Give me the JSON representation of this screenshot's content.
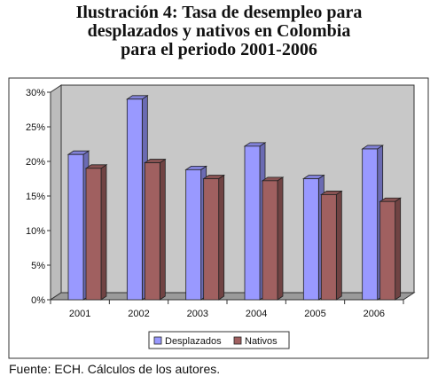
{
  "title_lines": [
    "Ilustración 4: Tasa de desempleo para",
    "desplazados y nativos en Colombia",
    "para el periodo 2001-2006"
  ],
  "source": "Fuente: ECH. Cálculos de los autores.",
  "chart_data": {
    "type": "bar",
    "title": "Ilustración 4: Tasa de desempleo para desplazados y nativos en Colombia para el periodo 2001-2006",
    "categories": [
      "2001",
      "2002",
      "2003",
      "2004",
      "2005",
      "2006"
    ],
    "series": [
      {
        "name": "Desplazados",
        "values": [
          0.21,
          0.29,
          0.188,
          0.222,
          0.175,
          0.218
        ],
        "color": "#9999ff"
      },
      {
        "name": "Nativos",
        "values": [
          0.19,
          0.198,
          0.175,
          0.172,
          0.152,
          0.142
        ],
        "color": "#a06060"
      }
    ],
    "yticks": [
      "0%",
      "5%",
      "10%",
      "15%",
      "20%",
      "25%",
      "30%"
    ],
    "ylim": [
      0,
      0.3
    ],
    "grid": false,
    "three_d": true,
    "legend_position": "bottom",
    "xlabel": "",
    "ylabel": ""
  }
}
